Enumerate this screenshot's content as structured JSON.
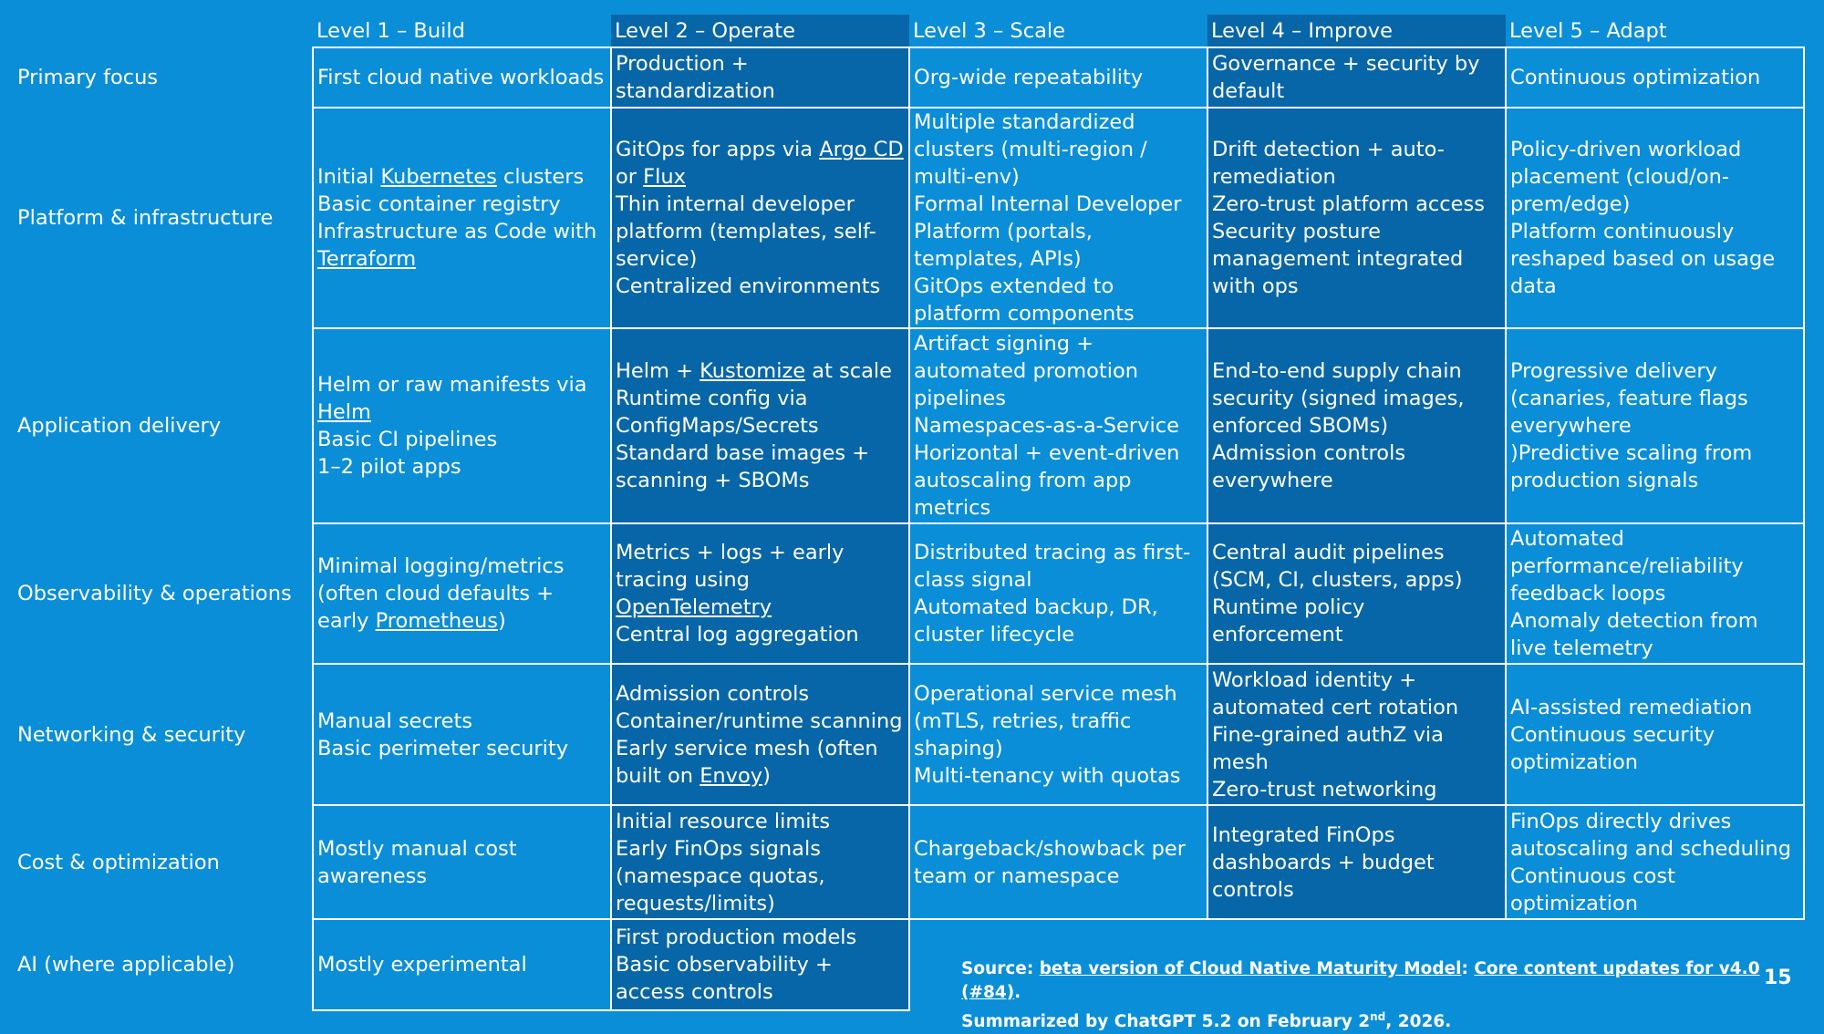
{
  "colors": {
    "background": "#0a8ed8",
    "dark_column": "#0766a7",
    "text": "#ffffff"
  },
  "levels": [
    "Level 1 – Build",
    "Level 2 – Operate",
    "Level 3 – Scale",
    "Level 4 – Improve",
    "Level 5 – Adapt"
  ],
  "rows": {
    "primary": {
      "label": "Primary focus",
      "l1": [
        "First cloud native workloads"
      ],
      "l2": [
        "Production + standardization"
      ],
      "l3": [
        "Org-wide repeatability"
      ],
      "l4": [
        "Governance + security by default"
      ],
      "l5": [
        "Continuous optimization"
      ]
    },
    "platform": {
      "label": "Platform & infrastructure",
      "l1": {
        "a_pre": "Initial ",
        "a_link": "Kubernetes",
        "a_post": " clusters",
        "b": "Basic container registry",
        "c": "Infrastructure as Code with ",
        "c_link": "Terraform"
      },
      "l2": {
        "a_pre": "GitOps for apps via ",
        "a_link1": "Argo CD",
        "a_mid": " or ",
        "a_link2": "Flux",
        "b": "Thin internal developer platform (templates, self-service)",
        "c": "Centralized environments"
      },
      "l3": [
        "Multiple standardized clusters (multi-region / multi-env)",
        "Formal Internal Developer Platform (portals, templates, APIs)",
        "GitOps extended to platform components"
      ],
      "l4": [
        "Drift detection + auto-remediation",
        "Zero-trust platform access",
        "Security posture management integrated with ops"
      ],
      "l5": [
        "Policy-driven workload placement (cloud/on-prem/edge)",
        "Platform continuously reshaped based on usage data"
      ]
    },
    "delivery": {
      "label": "Application delivery",
      "l1": {
        "a_pre": "Helm or raw manifests via ",
        "a_link": "Helm",
        "b": "Basic CI pipelines",
        "c": "1–2 pilot apps"
      },
      "l2": {
        "a_pre": "Helm + ",
        "a_link": "Kustomize",
        "a_post": " at scale",
        "b": "Runtime config via ConfigMaps/Secrets",
        "c": "Standard base images + scanning + SBOMs"
      },
      "l3": [
        "Artifact signing + automated promotion pipelines",
        "Namespaces-as-a-Service",
        "Horizontal + event-driven autoscaling from app metrics"
      ],
      "l4": [
        "End-to-end supply chain security (signed images, enforced SBOMs)",
        "Admission controls everywhere"
      ],
      "l5": [
        "Progressive delivery (canaries, feature flags everywhere",
        ")Predictive scaling from production signals"
      ]
    },
    "observability": {
      "label": "Observability & operations",
      "l1": {
        "a_pre": "Minimal logging/metrics (often cloud defaults + early ",
        "a_link": "Prometheus",
        "a_post": ")"
      },
      "l2": {
        "a_pre": "Metrics + logs + early tracing using ",
        "a_link": "OpenTelemetry",
        "b": "Central log aggregation"
      },
      "l3": [
        "Distributed tracing as first-class signal",
        "Automated backup, DR, cluster lifecycle"
      ],
      "l4": [
        "Central audit pipelines (SCM, CI, clusters, apps)",
        "Runtime policy enforcement"
      ],
      "l5": [
        "Automated performance/reliability feedback loops",
        "Anomaly detection from live telemetry"
      ]
    },
    "network": {
      "label": "Networking & security",
      "l1": [
        "Manual secrets",
        "Basic perimeter security"
      ],
      "l2": {
        "a": "Admission controls",
        "b": "Container/runtime scanning",
        "c_pre": "Early service mesh (often built on ",
        "c_link": "Envoy",
        "c_post": ")"
      },
      "l3": [
        "Operational service mesh (mTLS, retries, traffic shaping)",
        "Multi-tenancy with quotas"
      ],
      "l4": [
        "Workload identity + automated cert rotation",
        "Fine-grained authZ via mesh",
        "Zero-trust networking"
      ],
      "l5": [
        "AI-assisted remediation",
        "Continuous security optimization"
      ]
    },
    "cost": {
      "label": "Cost & optimization",
      "l1": [
        "Mostly manual cost awareness"
      ],
      "l2": [
        "Initial resource limits",
        "Early FinOps signals (namespace quotas, requests/limits)"
      ],
      "l3": [
        "Chargeback/showback per team or namespace"
      ],
      "l4": [
        "Integrated FinOps dashboards + budget controls"
      ],
      "l5": [
        "FinOps directly drives autoscaling and scheduling",
        "Continuous cost optimization"
      ]
    },
    "ai": {
      "label": "AI (where applicable)",
      "l1": [
        "Mostly experimental"
      ],
      "l2": [
        "First production models",
        "Basic observability + access controls"
      ]
    }
  },
  "source": {
    "prefix": "Source: ",
    "link1": "beta version of Cloud Native Maturity Model",
    "sep": ": ",
    "link2": "Core content updates for v4.0 (#84)",
    "end": ".",
    "line2_pre": "Summarized by ChatGPT 5.2 on February 2",
    "line2_sup": "nd",
    "line2_post": ", 2026."
  },
  "page_number": "15"
}
